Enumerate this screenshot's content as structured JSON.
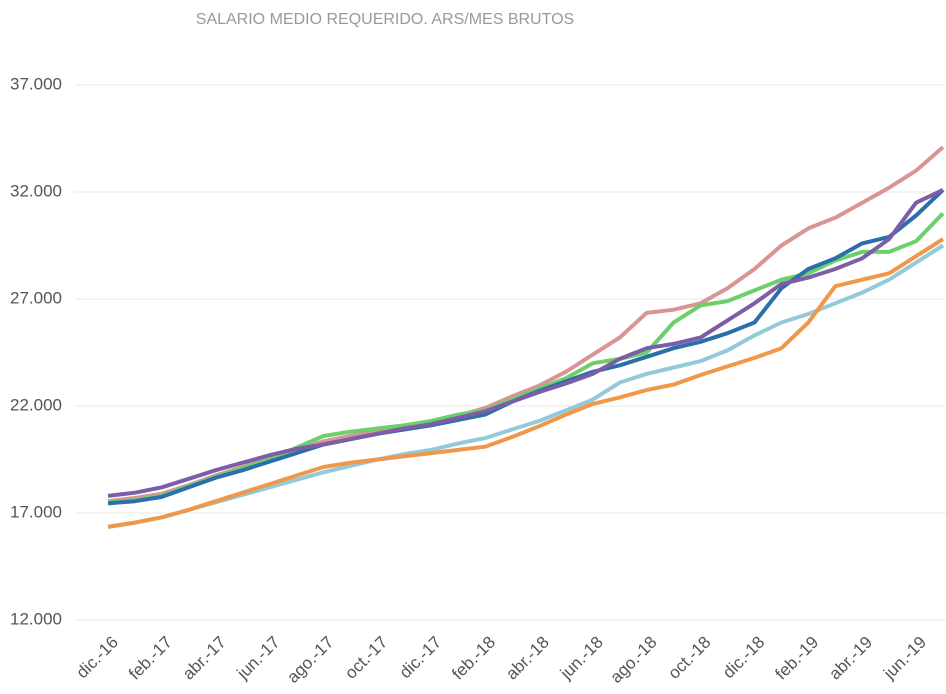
{
  "chart_data": {
    "type": "line",
    "title": "SALARIO MEDIO REQUERIDO. ARS/MES BRUTOS",
    "categories": [
      "dic.-16",
      null,
      "feb.-17",
      null,
      "abr.-17",
      null,
      "jun.-17",
      null,
      "ago.-17",
      null,
      "oct.-17",
      null,
      "dic.-17",
      null,
      "feb.-18",
      null,
      "abr.-18",
      null,
      "jun.-18",
      null,
      "ago.-18",
      null,
      "oct.-18",
      null,
      "dic.-18",
      null,
      "feb.-19",
      null,
      "abr.-19",
      null,
      "jun.-19",
      null
    ],
    "ylim": [
      12000,
      37000
    ],
    "yticks": [
      {
        "value": 12000,
        "label": "12.000"
      },
      {
        "value": 17000,
        "label": "17.000"
      },
      {
        "value": 22000,
        "label": "22.000"
      },
      {
        "value": 27000,
        "label": "27.000"
      },
      {
        "value": 32000,
        "label": "32.000"
      },
      {
        "value": 37000,
        "label": "37.000"
      }
    ],
    "grid": true,
    "series": [
      {
        "color": "#93cad9",
        "values": [
          16350,
          16550,
          16800,
          17150,
          17500,
          17850,
          18200,
          18550,
          18900,
          19200,
          19500,
          19750,
          19950,
          20250,
          20500,
          20900,
          21300,
          21800,
          22300,
          23100,
          23500,
          23800,
          24100,
          24600,
          25300,
          25900,
          26300,
          26800,
          27300,
          27900,
          28700,
          29500
        ]
      },
      {
        "color": "#f0974a",
        "values": [
          16350,
          16550,
          16800,
          17150,
          17550,
          17950,
          18350,
          18750,
          19150,
          19350,
          19500,
          19650,
          19800,
          19950,
          20100,
          20550,
          21050,
          21600,
          22100,
          22400,
          22750,
          23000,
          23450,
          23850,
          24250,
          24700,
          25900,
          27600,
          27900,
          28200,
          29000,
          29800
        ]
      },
      {
        "color": "#d99494",
        "values": [
          17550,
          17700,
          17900,
          18300,
          18750,
          19150,
          19550,
          19950,
          20350,
          20600,
          20850,
          21050,
          21250,
          21550,
          21900,
          22450,
          22950,
          23600,
          24400,
          25200,
          26350,
          26500,
          26800,
          27500,
          28400,
          29500,
          30300,
          30800,
          31500,
          32200,
          33000,
          34100
        ]
      },
      {
        "color": "#6ccf6c",
        "values": [
          17500,
          17600,
          17800,
          18250,
          18700,
          19100,
          19500,
          20050,
          20600,
          20800,
          20950,
          21100,
          21300,
          21600,
          21800,
          22300,
          22800,
          23300,
          24000,
          24200,
          24500,
          25900,
          26700,
          26900,
          27400,
          27900,
          28200,
          28800,
          29200,
          29200,
          29700,
          31000
        ]
      },
      {
        "color": "#2a6fa8",
        "values": [
          17450,
          17550,
          17750,
          18200,
          18650,
          19000,
          19400,
          19800,
          20200,
          20450,
          20700,
          20900,
          21100,
          21350,
          21600,
          22200,
          22700,
          23150,
          23600,
          23900,
          24300,
          24700,
          25000,
          25400,
          25900,
          27500,
          28400,
          28900,
          29600,
          29900,
          30900,
          32100
        ]
      },
      {
        "color": "#7b5ea7",
        "values": [
          17800,
          17950,
          18200,
          18600,
          19000,
          19350,
          19700,
          20000,
          20200,
          20450,
          20700,
          20950,
          21150,
          21450,
          21750,
          22200,
          22650,
          23050,
          23500,
          24200,
          24700,
          24900,
          25200,
          26000,
          26800,
          27700,
          28000,
          28400,
          28900,
          29800,
          31500,
          32100
        ]
      }
    ]
  }
}
